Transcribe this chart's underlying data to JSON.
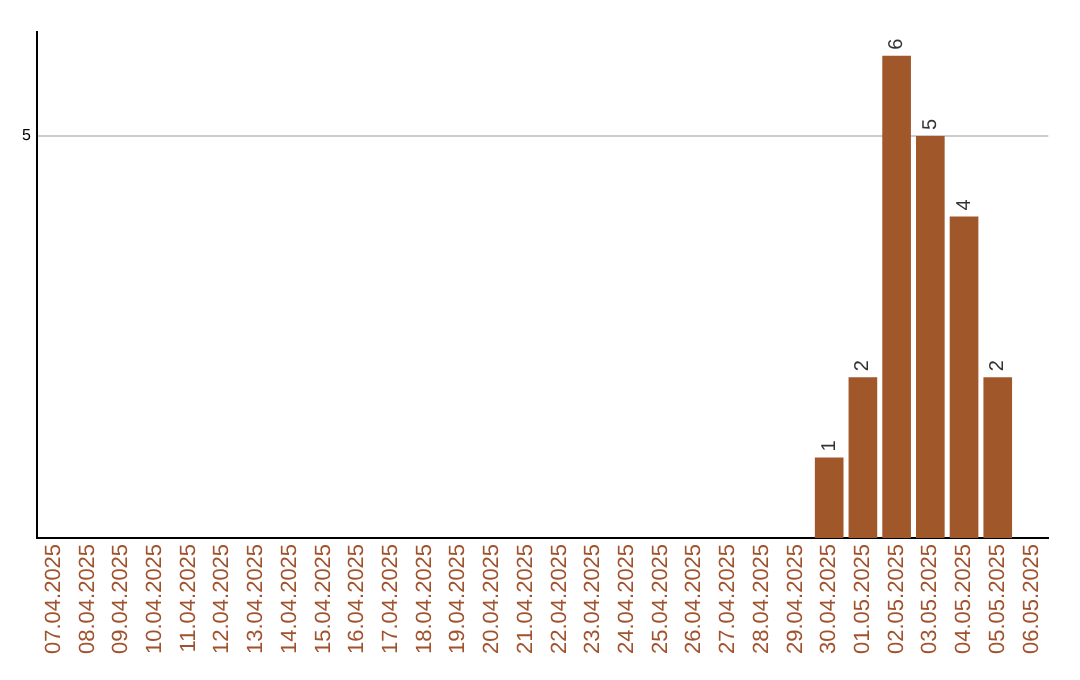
{
  "chart_data": {
    "type": "bar",
    "categories": [
      "07.04.2025",
      "08.04.2025",
      "09.04.2025",
      "10.04.2025",
      "11.04.2025",
      "12.04.2025",
      "13.04.2025",
      "14.04.2025",
      "15.04.2025",
      "16.04.2025",
      "17.04.2025",
      "18.04.2025",
      "19.04.2025",
      "20.04.2025",
      "21.04.2025",
      "22.04.2025",
      "23.04.2025",
      "24.04.2025",
      "25.04.2025",
      "26.04.2025",
      "27.04.2025",
      "28.04.2025",
      "29.04.2025",
      "30.04.2025",
      "01.05.2025",
      "02.05.2025",
      "03.05.2025",
      "04.05.2025",
      "05.05.2025",
      "06.05.2025"
    ],
    "values": [
      null,
      null,
      null,
      null,
      null,
      null,
      null,
      null,
      null,
      null,
      null,
      null,
      null,
      null,
      null,
      null,
      null,
      null,
      null,
      null,
      null,
      null,
      null,
      1,
      2,
      6,
      5,
      4,
      2,
      null
    ],
    "data_labels": true,
    "color": "#a0572a",
    "ylim": [
      0,
      6.3
    ],
    "yticks": [
      5
    ],
    "grid": "y",
    "legend": false
  }
}
